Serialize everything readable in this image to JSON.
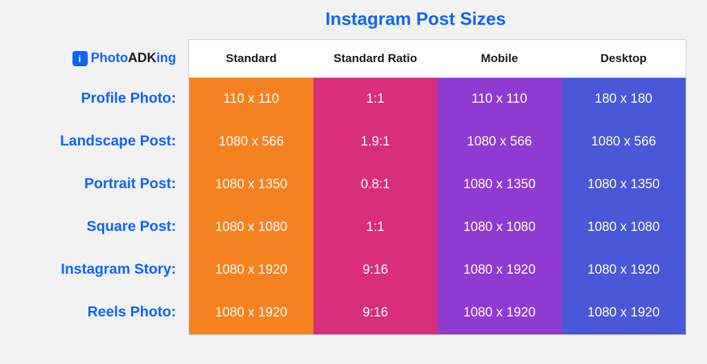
{
  "title": "Instagram Post Sizes",
  "title_color": "#0a66ff",
  "logo": {
    "icon_text": "i",
    "text_parts": [
      {
        "text": "Photo",
        "color": "#0a66ff"
      },
      {
        "text": "ADK",
        "color": "#1a1a1a"
      },
      {
        "text": "ing",
        "color": "#0a66ff"
      }
    ]
  },
  "label_color": "#0a66ff",
  "columns": [
    {
      "label": "Standard",
      "color": "#f58220"
    },
    {
      "label": "Standard Ratio",
      "color": "#d92e7a"
    },
    {
      "label": "Mobile",
      "color": "#8f3bd1"
    },
    {
      "label": "Desktop",
      "color": "#4a57d6"
    }
  ],
  "rows": [
    {
      "label": "Profile Photo:",
      "values": [
        "110 x 110",
        "1:1",
        "110 x 110",
        "180 x 180"
      ]
    },
    {
      "label": "Landscape Post:",
      "values": [
        "1080 x 566",
        "1.9:1",
        "1080 x 566",
        "1080 x 566"
      ]
    },
    {
      "label": "Portrait Post:",
      "values": [
        "1080 x 1350",
        "0.8:1",
        "1080 x 1350",
        "1080 x 1350"
      ]
    },
    {
      "label": "Square Post:",
      "values": [
        "1080 x 1080",
        "1:1",
        "1080 x 1080",
        "1080 x 1080"
      ]
    },
    {
      "label": "Instagram Story:",
      "values": [
        "1080 x 1920",
        "9:16",
        "1080 x 1920",
        "1080 x 1920"
      ]
    },
    {
      "label": "Reels Photo:",
      "values": [
        "1080 x 1920",
        "9:16",
        "1080 x 1920",
        "1080 x 1920"
      ]
    }
  ],
  "background_color": "#f2f2f2",
  "header_bg": "#ffffff",
  "header_text_color": "#1a1a1a",
  "border_color": "#cccccc"
}
